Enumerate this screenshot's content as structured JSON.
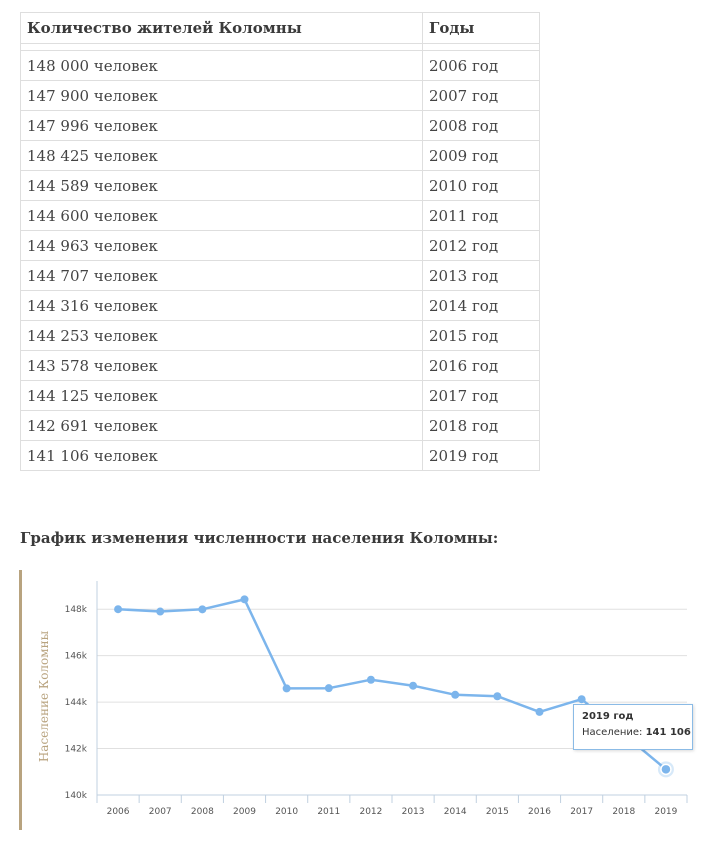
{
  "table": {
    "headers": [
      "Количество жителей Коломны",
      "Годы"
    ],
    "rows": [
      [
        "148 000 человек",
        "2006 год"
      ],
      [
        "147 900 человек",
        "2007 год"
      ],
      [
        "147 996 человек",
        "2008 год"
      ],
      [
        "148 425 человек",
        "2009 год"
      ],
      [
        "144 589 человек",
        "2010 год"
      ],
      [
        "144 600 человек",
        "2011 год"
      ],
      [
        "144 963 человек",
        "2012 год"
      ],
      [
        "144 707 человек",
        "2013 год"
      ],
      [
        "144 316 человек",
        "2014 год"
      ],
      [
        "144 253 человек",
        "2015 год"
      ],
      [
        "143 578 человек",
        "2016 год"
      ],
      [
        "144 125 человек",
        "2017 год"
      ],
      [
        "142 691 человек",
        "2018 год"
      ],
      [
        "141 106 человек",
        "2019 год"
      ]
    ]
  },
  "heading": "График изменения численности населения Коломны:",
  "chart_data": {
    "type": "line",
    "categories": [
      "2006",
      "2007",
      "2008",
      "2009",
      "2010",
      "2011",
      "2012",
      "2013",
      "2014",
      "2015",
      "2016",
      "2017",
      "2018",
      "2019"
    ],
    "values": [
      148000,
      147900,
      147996,
      148425,
      144589,
      144600,
      144963,
      144707,
      144316,
      144253,
      143578,
      144125,
      null,
      141106
    ],
    "ylabel": "Население Коломны",
    "ylim": [
      140000,
      149000
    ],
    "yticks": [
      140000,
      142000,
      144000,
      146000,
      148000
    ],
    "ytick_labels": [
      "140k",
      "142k",
      "144k",
      "146k",
      "148k"
    ],
    "grid": true,
    "line_color": "#7cb5ec",
    "axis_color": "#c0d0e0",
    "highlight_index": 13
  },
  "tooltip": {
    "title": "2019 год",
    "label": "Население:",
    "value": "141 106"
  }
}
